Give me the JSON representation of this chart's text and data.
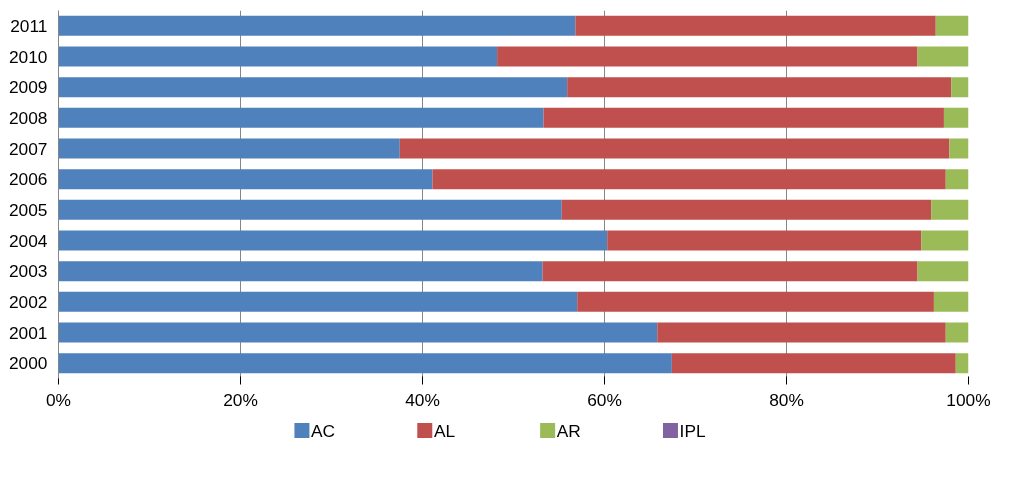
{
  "chart_data": {
    "type": "bar",
    "orientation": "horizontal",
    "stacked": true,
    "categories": [
      "2011",
      "2010",
      "2009",
      "2008",
      "2007",
      "2006",
      "2005",
      "2004",
      "2003",
      "2002",
      "2001",
      "2000"
    ],
    "series": [
      {
        "name": "AC",
        "color": "#4f81bd",
        "values": [
          56.8,
          48.2,
          55.9,
          53.3,
          37.5,
          41.1,
          55.3,
          60.3,
          53.2,
          57.0,
          65.8,
          67.4
        ]
      },
      {
        "name": "AL",
        "color": "#c0504d",
        "values": [
          39.6,
          46.2,
          42.2,
          44.0,
          60.4,
          56.4,
          40.6,
          34.5,
          41.2,
          39.2,
          31.7,
          31.2
        ]
      },
      {
        "name": "AR",
        "color": "#9bbb59",
        "values": [
          3.6,
          5.6,
          1.9,
          2.7,
          2.1,
          2.5,
          4.1,
          5.2,
          5.6,
          3.8,
          2.5,
          1.4
        ]
      },
      {
        "name": "IPL",
        "color": "#8064a2",
        "values": [
          0,
          0,
          0,
          0,
          0,
          0,
          0,
          0,
          0,
          0,
          0,
          0
        ]
      }
    ],
    "xlim": [
      0,
      100
    ],
    "xticks": [
      {
        "value": 0,
        "label": "0%"
      },
      {
        "value": 20,
        "label": "20%"
      },
      {
        "value": 40,
        "label": "40%"
      },
      {
        "value": 60,
        "label": "60%"
      },
      {
        "value": 80,
        "label": "80%"
      },
      {
        "value": 100,
        "label": "100%"
      }
    ],
    "grid": "x",
    "legend": "bottom"
  }
}
